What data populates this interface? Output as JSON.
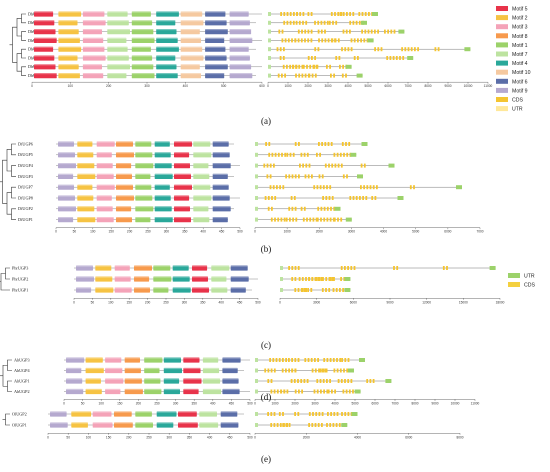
{
  "legend_main": [
    {
      "label": "Motif 5",
      "color": "#e8334a"
    },
    {
      "label": "Motif 2",
      "color": "#f6c343"
    },
    {
      "label": "Motif 3",
      "color": "#f4a3b8"
    },
    {
      "label": "Motif 8",
      "color": "#f79a4d"
    },
    {
      "label": "Motif 1",
      "color": "#9cd26a"
    },
    {
      "label": "Motif 7",
      "color": "#bde3a0"
    },
    {
      "label": "Motif 4",
      "color": "#2aa89a"
    },
    {
      "label": "Motif 10",
      "color": "#f5c9a0"
    },
    {
      "label": "Motif 6",
      "color": "#5b6ea8"
    },
    {
      "label": "Motif 9",
      "color": "#b5a9cf"
    },
    {
      "label": "CDS",
      "color": "#f4c430"
    },
    {
      "label": "UTR",
      "color": "#ffe89a"
    }
  ],
  "legend_c": [
    {
      "label": "UTR",
      "color": "#9cd26a"
    },
    {
      "label": "CDS",
      "color": "#f4d03f"
    }
  ],
  "panels": [
    {
      "label": "(a)",
      "genes": [
        "DbUGP3",
        "DbUGP7",
        "DbUGP4",
        "DbUGP8",
        "DbUGP2",
        "DbUGP6",
        "DbUGP1",
        "DbUGP5"
      ],
      "motif_ticks": [
        "0",
        "100",
        "200",
        "300",
        "400",
        "500",
        "600"
      ],
      "struct_ticks": [
        "0",
        "1000",
        "2000",
        "3000",
        "4000",
        "5000",
        "6000",
        "7000",
        "8000",
        "9000",
        "10000",
        "11000"
      ]
    },
    {
      "label": "(b)",
      "genes": [
        "DfUGP6",
        "DfUGP5",
        "DfUGP4",
        "DfUGP3",
        "DfUGP7",
        "DfUGP8",
        "DfUGP2",
        "DfUGP1"
      ],
      "motif_ticks": [
        "0",
        "50",
        "100",
        "150",
        "200",
        "250",
        "300",
        "350",
        "400",
        "450",
        "500"
      ],
      "struct_ticks": [
        "0",
        "1000",
        "2000",
        "3000",
        "4000",
        "5000",
        "6000",
        "7000"
      ]
    },
    {
      "label": "(c)",
      "genes": [
        "PhrUGP3",
        "PhrUGP2",
        "PhrUGP1"
      ],
      "motif_ticks": [
        "0",
        "50",
        "100",
        "150",
        "200",
        "250",
        "300",
        "350",
        "400",
        "450",
        "500"
      ],
      "struct_ticks": [
        "0",
        "3000",
        "6000",
        "9000",
        "12000",
        "15000",
        "18000"
      ]
    },
    {
      "label": "(d)",
      "genes": [
        "AhUGP3",
        "AhUGP4",
        "AhUGP1",
        "AhUGP2"
      ],
      "motif_ticks": [
        "0",
        "50",
        "100",
        "150",
        "200",
        "250",
        "300",
        "350",
        "400",
        "450",
        "500"
      ],
      "struct_ticks": [
        "0",
        "1000",
        "2000",
        "3000",
        "4000",
        "5000",
        "6000",
        "7000",
        "8000",
        "9000",
        "10000",
        "11000"
      ]
    },
    {
      "label": "(e)",
      "genes": [
        "OlUGP2",
        "OlUGP1"
      ],
      "motif_ticks": [
        "0",
        "50",
        "100",
        "150",
        "200",
        "250",
        "300",
        "350",
        "400",
        "450",
        "500"
      ],
      "struct_ticks": [
        "0",
        "2000",
        "4000",
        "6000",
        "8000"
      ]
    }
  ]
}
